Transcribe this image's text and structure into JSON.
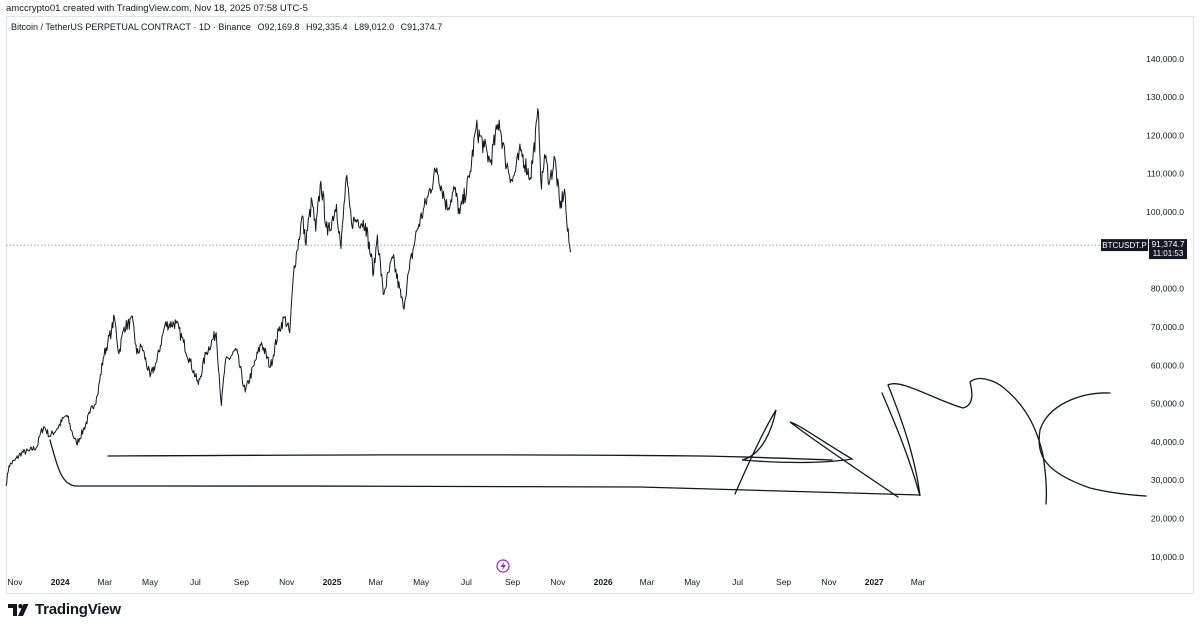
{
  "header": {
    "credit": "amccrypto01 created with TradingView.com, Nov 18, 2025 07:58 UTC-5"
  },
  "symbol": {
    "title": "Bitcoin / TetherUS PERPETUAL CONTRACT · 1D · Binance",
    "open": "O92,169.8",
    "high": "H92,335.4",
    "low": "L89,012.0",
    "close": "C91,374.7"
  },
  "price_tag": {
    "ticker": "BTCUSDT.P",
    "price": "91,374.7",
    "countdown": "11:01:53"
  },
  "branding": {
    "name": "TradingView"
  },
  "colors": {
    "line": "#131722",
    "grid_dotted": "#787b86",
    "label_bg": "#131722",
    "event_icon": "#9c27b0"
  },
  "chart_data": {
    "type": "line",
    "title": "Bitcoin / TetherUS PERPETUAL CONTRACT · 1D · Binance",
    "xlabel": "",
    "ylabel": "",
    "ylim": [
      5000,
      147000
    ],
    "y_ticks": [
      10000,
      20000,
      30000,
      40000,
      50000,
      60000,
      70000,
      80000,
      90000,
      100000,
      110000,
      120000,
      130000,
      140000
    ],
    "y_tick_labels": [
      "10,000.0",
      "20,000.0",
      "30,000.0",
      "40,000.0",
      "50,000.0",
      "60,000.0",
      "70,000.0",
      "80,000.0",
      "90,000.0",
      "100,000.0",
      "110,000.0",
      "120,000.0",
      "130,000.0",
      "140,000.0"
    ],
    "x_ticks": [
      {
        "date": "2023-11-01",
        "label": "Nov"
      },
      {
        "date": "2024-01-01",
        "label": "2024"
      },
      {
        "date": "2024-03-01",
        "label": "Mar"
      },
      {
        "date": "2024-05-01",
        "label": "May"
      },
      {
        "date": "2024-07-01",
        "label": "Jul"
      },
      {
        "date": "2024-09-01",
        "label": "Sep"
      },
      {
        "date": "2024-11-01",
        "label": "Nov"
      },
      {
        "date": "2025-01-01",
        "label": "2025"
      },
      {
        "date": "2025-03-01",
        "label": "Mar"
      },
      {
        "date": "2025-05-01",
        "label": "May"
      },
      {
        "date": "2025-07-01",
        "label": "Jul"
      },
      {
        "date": "2025-09-01",
        "label": "Sep"
      },
      {
        "date": "2025-11-01",
        "label": "Nov"
      },
      {
        "date": "2026-01-01",
        "label": "2026"
      },
      {
        "date": "2026-03-01",
        "label": "Mar"
      },
      {
        "date": "2026-05-01",
        "label": "May"
      },
      {
        "date": "2026-07-01",
        "label": "Jul"
      },
      {
        "date": "2026-09-01",
        "label": "Sep"
      },
      {
        "date": "2026-11-01",
        "label": "Nov"
      },
      {
        "date": "2027-01-01",
        "label": "2027"
      },
      {
        "date": "2027-03-01",
        "label": "Mar"
      }
    ],
    "x_range": [
      "2023-10-20",
      "2027-11-01"
    ],
    "grid": false,
    "current_price": 91374.7,
    "series": [
      {
        "values": [
          [
            "2023-10-20",
            28500
          ],
          [
            "2023-10-24",
            33800
          ],
          [
            "2023-11-01",
            35200
          ],
          [
            "2023-11-10",
            37200
          ],
          [
            "2023-11-20",
            37600
          ],
          [
            "2023-12-01",
            38800
          ],
          [
            "2023-12-05",
            42000
          ],
          [
            "2023-12-10",
            44000
          ],
          [
            "2023-12-18",
            41500
          ],
          [
            "2023-12-28",
            43500
          ],
          [
            "2024-01-08",
            46800
          ],
          [
            "2024-01-11",
            46500
          ],
          [
            "2024-01-16",
            43000
          ],
          [
            "2024-01-23",
            39500
          ],
          [
            "2024-02-01",
            43000
          ],
          [
            "2024-02-10",
            47500
          ],
          [
            "2024-02-20",
            52000
          ],
          [
            "2024-02-28",
            62000
          ],
          [
            "2024-03-05",
            66000
          ],
          [
            "2024-03-10",
            69000
          ],
          [
            "2024-03-14",
            72500
          ],
          [
            "2024-03-20",
            63000
          ],
          [
            "2024-03-27",
            70000
          ],
          [
            "2024-04-08",
            71500
          ],
          [
            "2024-04-13",
            63000
          ],
          [
            "2024-04-20",
            65000
          ],
          [
            "2024-05-01",
            57000
          ],
          [
            "2024-05-10",
            61000
          ],
          [
            "2024-05-21",
            70500
          ],
          [
            "2024-06-05",
            71000
          ],
          [
            "2024-06-15",
            66000
          ],
          [
            "2024-06-24",
            61000
          ],
          [
            "2024-07-05",
            55000
          ],
          [
            "2024-07-15",
            63000
          ],
          [
            "2024-07-29",
            68500
          ],
          [
            "2024-08-05",
            49500
          ],
          [
            "2024-08-10",
            60500
          ],
          [
            "2024-08-25",
            64000
          ],
          [
            "2024-09-06",
            53000
          ],
          [
            "2024-09-18",
            60000
          ],
          [
            "2024-09-28",
            66000
          ],
          [
            "2024-10-10",
            59500
          ],
          [
            "2024-10-21",
            69000
          ],
          [
            "2024-10-29",
            72500
          ],
          [
            "2024-11-05",
            68500
          ],
          [
            "2024-11-11",
            86000
          ],
          [
            "2024-11-15",
            90000
          ],
          [
            "2024-11-22",
            99000
          ],
          [
            "2024-11-26",
            92000
          ],
          [
            "2024-12-05",
            103000
          ],
          [
            "2024-12-10",
            95000
          ],
          [
            "2024-12-17",
            108000
          ],
          [
            "2024-12-26",
            94000
          ],
          [
            "2025-01-07",
            102000
          ],
          [
            "2025-01-13",
            90500
          ],
          [
            "2025-01-20",
            109000
          ],
          [
            "2025-01-27",
            97500
          ],
          [
            "2025-02-05",
            98000
          ],
          [
            "2025-02-15",
            97000
          ],
          [
            "2025-02-26",
            84000
          ],
          [
            "2025-03-03",
            94000
          ],
          [
            "2025-03-11",
            78500
          ],
          [
            "2025-03-24",
            88000
          ],
          [
            "2025-04-07",
            75000
          ],
          [
            "2025-04-15",
            85000
          ],
          [
            "2025-04-25",
            95000
          ],
          [
            "2025-05-10",
            104000
          ],
          [
            "2025-05-22",
            111500
          ],
          [
            "2025-06-05",
            101000
          ],
          [
            "2025-06-15",
            106000
          ],
          [
            "2025-06-22",
            99500
          ],
          [
            "2025-07-05",
            109000
          ],
          [
            "2025-07-14",
            122000
          ],
          [
            "2025-07-25",
            117000
          ],
          [
            "2025-08-02",
            113000
          ],
          [
            "2025-08-14",
            124000
          ],
          [
            "2025-08-22",
            114000
          ],
          [
            "2025-09-01",
            108000
          ],
          [
            "2025-09-12",
            116000
          ],
          [
            "2025-09-25",
            109000
          ],
          [
            "2025-10-06",
            126000
          ],
          [
            "2025-10-10",
            106000
          ],
          [
            "2025-10-14",
            115000
          ],
          [
            "2025-10-21",
            108000
          ],
          [
            "2025-10-28",
            114000
          ],
          [
            "2025-11-04",
            101000
          ],
          [
            "2025-11-10",
            106000
          ],
          [
            "2025-11-14",
            95000
          ],
          [
            "2025-11-18",
            89500
          ]
        ]
      }
    ]
  }
}
